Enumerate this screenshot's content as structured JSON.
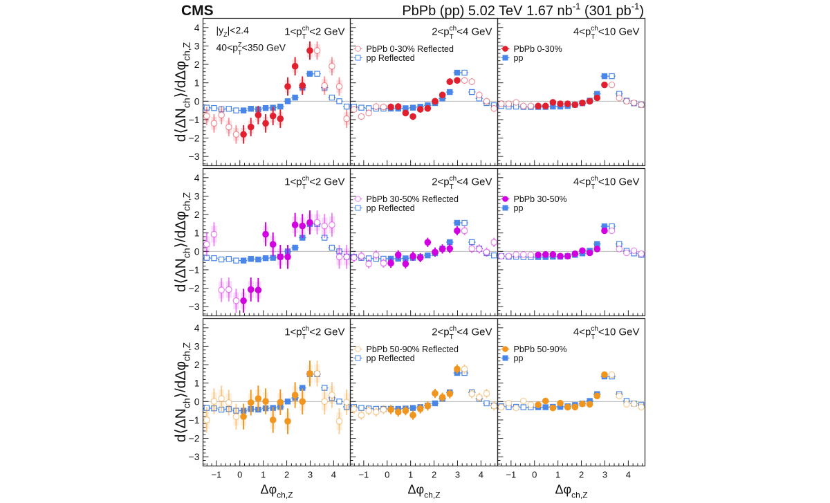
{
  "header": {
    "experiment": "CMS",
    "lumi_pre": "PbPb (pp) 5.02 TeV 1.67 nb",
    "lumi_sup1": "-1",
    "lumi_mid": " (301 pb",
    "lumi_sup2": "-1",
    "lumi_post": ")"
  },
  "annotations": {
    "rapidity_pre": "|y",
    "rapidity_sub": "Z",
    "rapidity_post": "|<2.4",
    "ptz_pre": "40<p",
    "ptz_sup": "Z",
    "ptz_sub": "T",
    "ptz_post": "<350 GeV"
  },
  "chart_data": {
    "type": "scatter",
    "panel_grid": "3 rows x 3 columns",
    "xlabel": {
      "main": "Δφ",
      "sub": "ch,Z"
    },
    "ylabel": {
      "pre": "d⟨ΔN",
      "sub1": "ch",
      "mid": "⟩/dΔφ",
      "sub2": "ch,Z"
    },
    "xlim": [
      -1.571,
      4.712
    ],
    "ylim": [
      -3.5,
      4.5
    ],
    "x_ticks": [
      "-1",
      "0",
      "1",
      "2",
      "3",
      "4"
    ],
    "y_ticks": [
      "-3",
      "-2",
      "-1",
      "0",
      "1",
      "2",
      "3",
      "4"
    ],
    "x_tick_labels": [
      "−1",
      "0",
      "1",
      "2",
      "3",
      "4"
    ],
    "y_tick_labels": [
      "−3",
      "−2",
      "−1",
      "0",
      "1",
      "2",
      "3",
      "4"
    ],
    "zero_line": true,
    "reflection": "points in [0, π] mirrored about 0 and π (open markers)",
    "x": [
      0.157,
      0.471,
      0.785,
      1.1,
      1.414,
      1.728,
      2.042,
      2.356,
      2.67,
      2.985
    ],
    "columns": [
      {
        "pt_pre": "1<p",
        "pt_sup": "ch",
        "pt_sub": "T",
        "pt_post": "<2 GeV"
      },
      {
        "pt_pre": "2<p",
        "pt_sup": "ch",
        "pt_sub": "T",
        "pt_post": "<4 GeV"
      },
      {
        "pt_pre": "4<p",
        "pt_sup": "ch",
        "pt_sub": "T",
        "pt_post": "<10 GeV"
      }
    ],
    "pp": {
      "color": "#4a86e8",
      "legend_reflected": "pp Reflected",
      "legend": "pp",
      "values": [
        [
          -0.5,
          -0.41,
          -0.44,
          -0.37,
          -0.35,
          -0.29,
          0.0,
          0.2,
          0.74,
          1.49
        ],
        [
          -0.4,
          -0.4,
          -0.38,
          -0.35,
          -0.3,
          -0.22,
          -0.1,
          0.15,
          0.5,
          1.55
        ],
        [
          -0.31,
          -0.31,
          -0.29,
          -0.29,
          -0.26,
          -0.19,
          -0.11,
          0.03,
          0.4,
          1.36
        ]
      ],
      "approx_uncertainty": [
        0.06,
        0.05,
        0.04
      ]
    },
    "rows": [
      {
        "centrality": "0-30%",
        "color": "#e0202f",
        "legend_reflected": "PbPb 0-30% Reflected",
        "legend": "PbPb 0-30%",
        "values": [
          [
            -1.8,
            -1.4,
            -0.75,
            -1.2,
            -0.8,
            -0.95,
            0.8,
            1.9,
            0.85,
            2.75
          ],
          [
            -0.31,
            -0.29,
            -0.64,
            -0.83,
            -0.44,
            -0.39,
            0.0,
            0.34,
            1.06,
            1.13
          ],
          [
            -0.26,
            -0.26,
            -0.06,
            -0.14,
            -0.14,
            -0.19,
            -0.09,
            0.0,
            0.18,
            0.89
          ]
        ],
        "approx_uncertainty": [
          0.5,
          0.18,
          0.08
        ]
      },
      {
        "centrality": "30-50%",
        "color": "#d000e0",
        "legend_reflected": "PbPb 30-50% Reflected",
        "legend": "PbPb 30-50%",
        "values": [
          [
            -2.68,
            -2.07,
            -2.1,
            0.93,
            0.38,
            -0.3,
            -0.3,
            1.44,
            1.38,
            1.57
          ],
          [
            -0.64,
            -0.19,
            -0.68,
            -0.26,
            -0.34,
            0.49,
            -0.04,
            0.13,
            0.15,
            1.12
          ],
          [
            -0.19,
            -0.17,
            -0.17,
            -0.26,
            -0.26,
            -0.13,
            0.04,
            -0.08,
            0.13,
            1.12
          ]
        ],
        "approx_uncertainty": [
          0.65,
          0.25,
          0.08
        ]
      },
      {
        "centrality": "50-90%",
        "color": "#f0951e",
        "legend_reflected": "PbPb 50-90% Reflected",
        "legend": "PbPb 50-90%",
        "values": [
          [
            -0.82,
            -0.06,
            0.16,
            0.01,
            -1.0,
            -0.04,
            -1.07,
            0.35,
            0.0,
            1.52
          ],
          [
            -0.44,
            -0.57,
            -0.5,
            -0.74,
            -0.4,
            -0.24,
            0.44,
            0.23,
            0.42,
            1.76
          ],
          [
            -0.18,
            0.03,
            -0.35,
            -0.09,
            -0.31,
            -0.3,
            -0.13,
            -0.15,
            0.3,
            1.46
          ]
        ],
        "approx_uncertainty": [
          0.7,
          0.25,
          0.12
        ]
      }
    ]
  }
}
